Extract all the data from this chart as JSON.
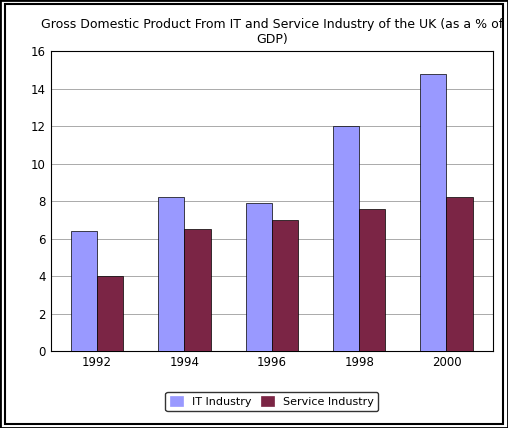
{
  "title": "Gross Domestic Product From IT and Service Industry of the UK (as a % of\nGDP)",
  "years": [
    "1992",
    "1994",
    "1996",
    "1998",
    "2000"
  ],
  "it_industry": [
    6.4,
    8.2,
    7.9,
    12.0,
    14.8
  ],
  "service_industry": [
    4.0,
    6.5,
    7.0,
    7.6,
    8.2
  ],
  "it_color": "#9999FF",
  "service_color": "#7B2545",
  "bar_width": 0.3,
  "ylim": [
    0,
    16
  ],
  "yticks": [
    0,
    2,
    4,
    6,
    8,
    10,
    12,
    14,
    16
  ],
  "legend_labels": [
    "IT Industry",
    "Service Industry"
  ],
  "background_color": "#FFFFFF",
  "title_fontsize": 9,
  "tick_fontsize": 8.5,
  "legend_fontsize": 8,
  "outer_border_color": "#000000",
  "grid_color": "#AAAAAA"
}
